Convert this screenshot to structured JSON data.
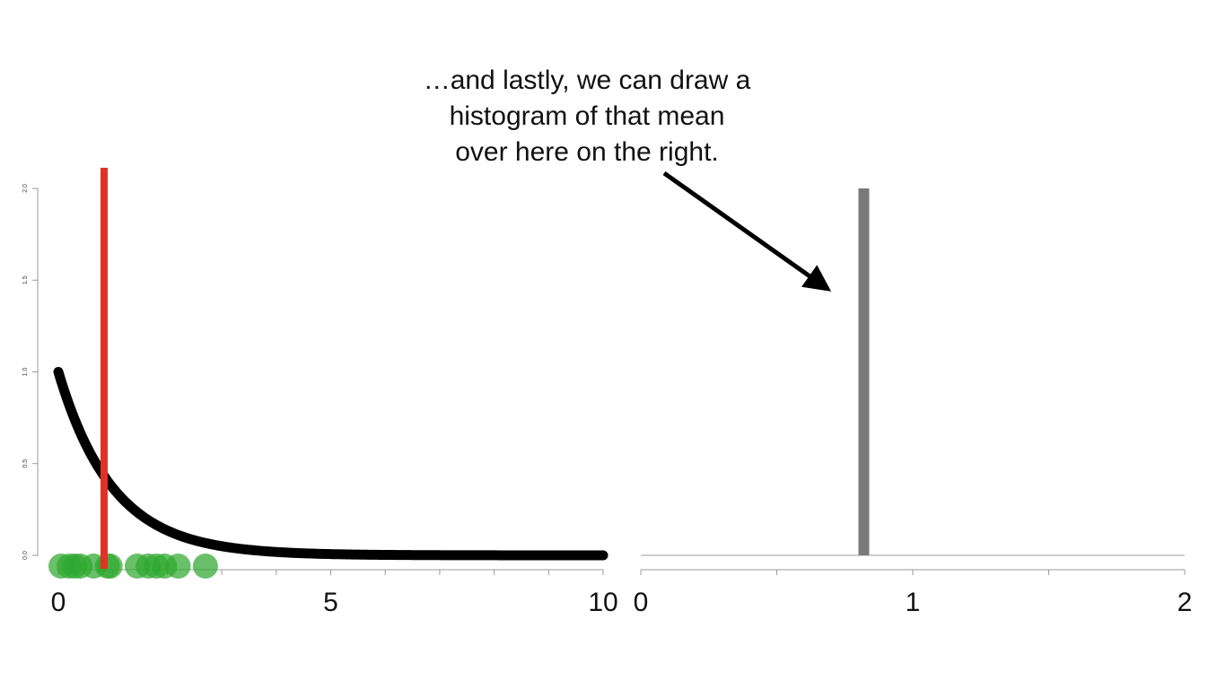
{
  "annotation": {
    "lines": [
      "…and lastly, we can draw a",
      "histogram of that mean",
      "over here on the right."
    ]
  },
  "chart_data": [
    {
      "type": "line",
      "title": "",
      "xlabel": "",
      "ylabel": "",
      "xlim": [
        0,
        10
      ],
      "ylim": [
        0,
        2
      ],
      "x_ticks": [
        "0",
        "5",
        "10"
      ],
      "y_ticks": [
        "0.0",
        "0.5",
        "1.0",
        "1.5",
        "2.0"
      ],
      "curve": {
        "function": "exp(-x)",
        "x_range": [
          0,
          10
        ],
        "color": "#000000"
      },
      "sample_points": {
        "color": "#2fa82f",
        "x": [
          0.05,
          0.2,
          0.3,
          0.4,
          0.65,
          0.9,
          0.95,
          1.45,
          1.65,
          1.8,
          1.95,
          2.2,
          2.7
        ]
      },
      "mean_line": {
        "x": 0.84,
        "color": "#e03227"
      },
      "grid": false
    },
    {
      "type": "bar",
      "title": "",
      "xlabel": "",
      "ylabel": "",
      "xlim": [
        0,
        2
      ],
      "ylim": [
        0,
        2
      ],
      "x_ticks": [
        "0",
        "1",
        "2"
      ],
      "bars": [
        {
          "x": 0.82,
          "value": 2,
          "color": "#7a7a7a"
        }
      ],
      "grid": false
    }
  ]
}
